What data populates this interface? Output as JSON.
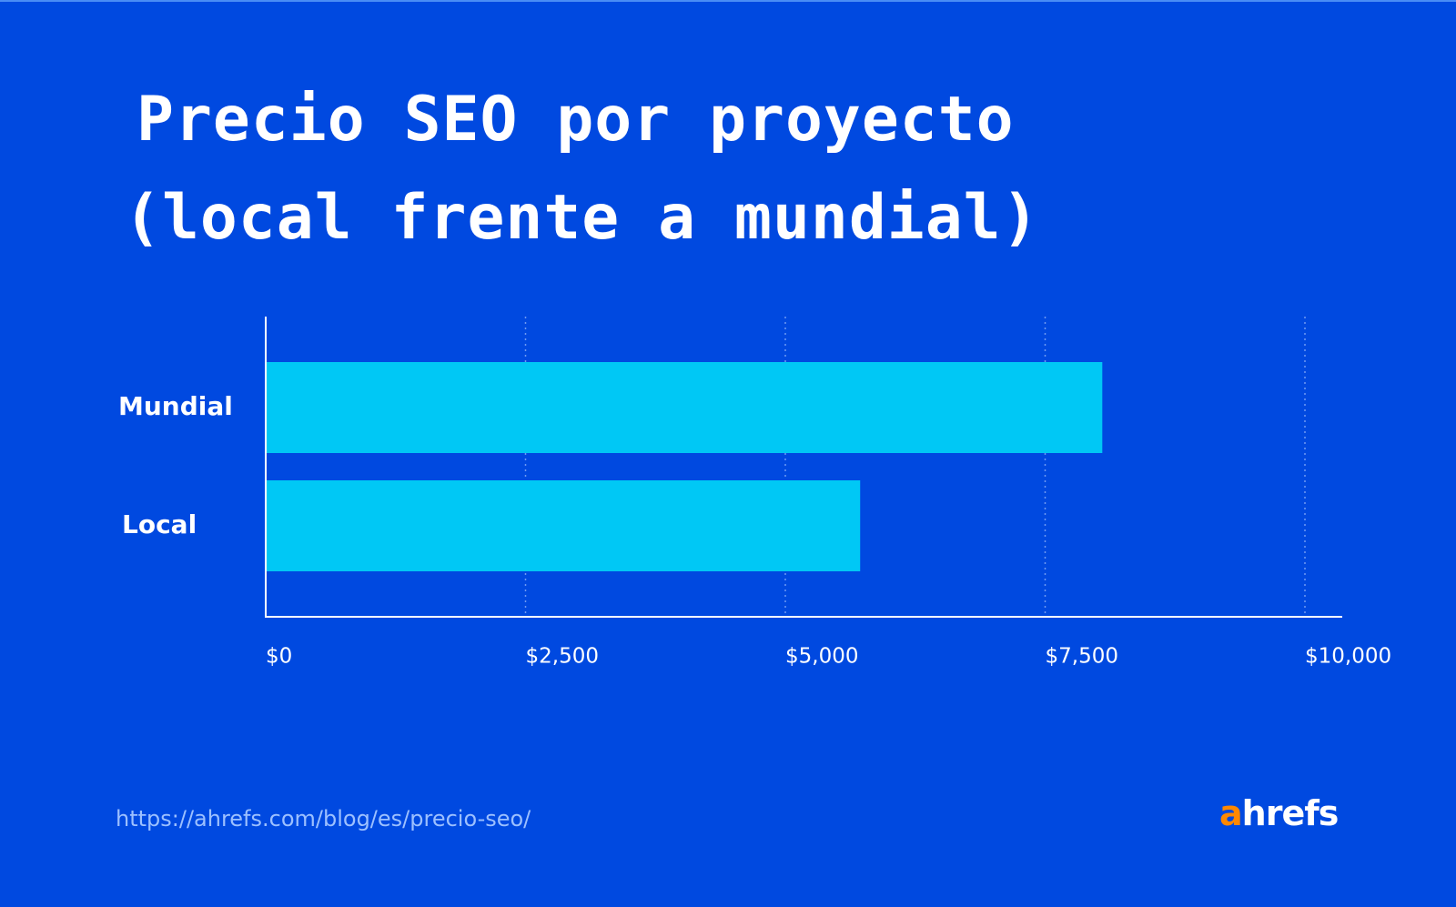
{
  "title": {
    "line1": "Precio SEO por proyecto",
    "line2": "(local frente a mundial)"
  },
  "chart_data": {
    "type": "bar",
    "orientation": "horizontal",
    "categories": [
      "Mundial",
      "Local"
    ],
    "values": [
      8050,
      5720
    ],
    "xlim": [
      0,
      10000
    ],
    "ticks": [
      {
        "value": 0,
        "label": "$0"
      },
      {
        "value": 2500,
        "label": "$2,500"
      },
      {
        "value": 5000,
        "label": "$5,000"
      },
      {
        "value": 7500,
        "label": "$7,500"
      },
      {
        "value": 10000,
        "label": "$10,000"
      }
    ],
    "grid": "vertical-dotted",
    "xlabel": "",
    "ylabel": "",
    "bar_color": "#00c8f5",
    "axis_color": "#ffffff",
    "grid_color": "#6f9af2"
  },
  "footer": {
    "url": "https://ahrefs.com/blog/es/precio-seo/",
    "logo_accent": "a",
    "logo_rest": "hrefs"
  },
  "colors": {
    "background": "#0049e0",
    "accent": "#ff8800",
    "text": "#ffffff",
    "url": "#9cc0ff"
  }
}
